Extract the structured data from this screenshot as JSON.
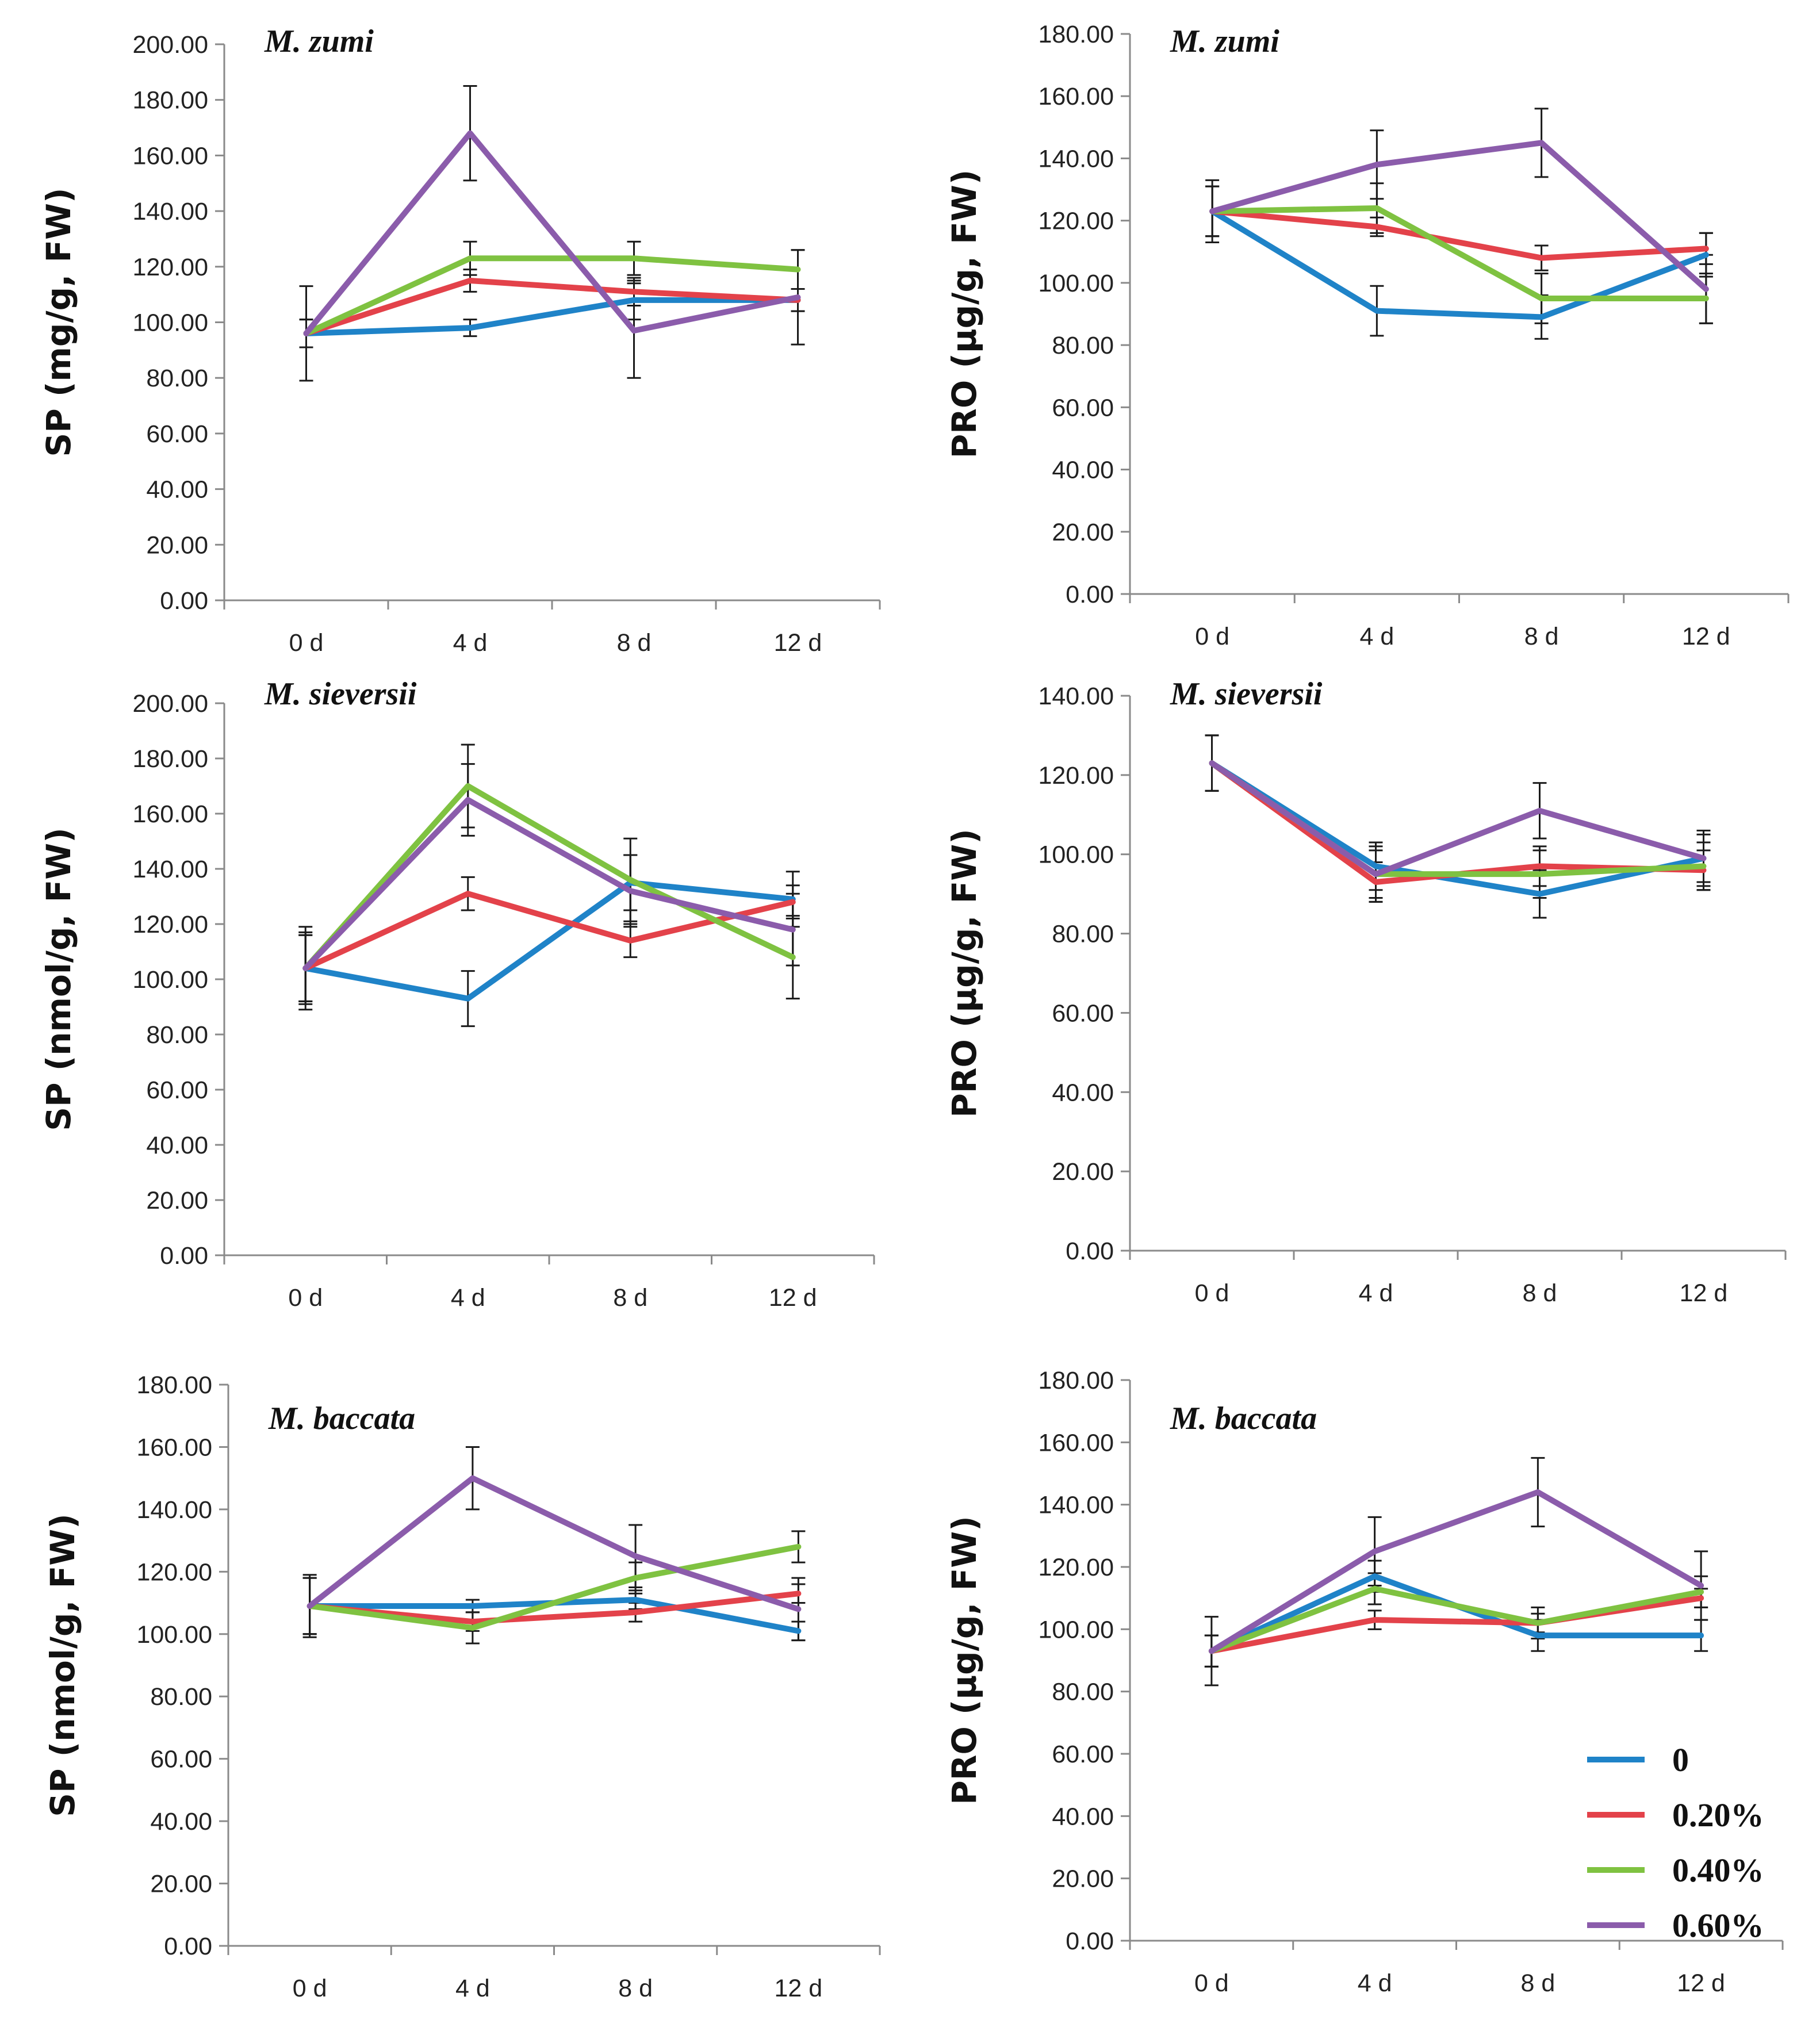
{
  "chart_data": [
    {
      "type": "line",
      "title": "M. zumi",
      "ylabel": "SP (mg/g, FW)",
      "xlabel": "",
      "categories": [
        "0 d",
        "4 d",
        "8 d",
        "12 d"
      ],
      "ylim": [
        0,
        200
      ],
      "ytick_step": 20,
      "ytick_labels": [
        "0.00",
        "20.00",
        "40.00",
        "60.00",
        "80.00",
        "100.00",
        "120.00",
        "140.00",
        "160.00",
        "180.00",
        "200.00"
      ],
      "series": [
        {
          "name": "0",
          "values": [
            96,
            98,
            108,
            108
          ],
          "errors": [
            5,
            3,
            7,
            4
          ]
        },
        {
          "name": "0.20%",
          "values": [
            96,
            115,
            111,
            108
          ],
          "errors": [
            5,
            4,
            5,
            4
          ]
        },
        {
          "name": "0.40%",
          "values": [
            96,
            123,
            123,
            119
          ],
          "errors": [
            5,
            6,
            6,
            7
          ]
        },
        {
          "name": "0.60%",
          "values": [
            96,
            168,
            97,
            109
          ],
          "errors": [
            17,
            17,
            17,
            17
          ]
        }
      ]
    },
    {
      "type": "line",
      "title": "M. zumi",
      "ylabel": "PRO (µg/g, FW)",
      "xlabel": "",
      "categories": [
        "0 d",
        "4 d",
        "8 d",
        "12 d"
      ],
      "ylim": [
        0,
        180
      ],
      "ytick_step": 20,
      "ytick_labels": [
        "0.00",
        "20.00",
        "40.00",
        "60.00",
        "80.00",
        "100.00",
        "120.00",
        "140.00",
        "160.00",
        "180.00"
      ],
      "series": [
        {
          "name": "0",
          "values": [
            123,
            91,
            89,
            109
          ],
          "errors": [
            8,
            8,
            7,
            7
          ]
        },
        {
          "name": "0.20%",
          "values": [
            123,
            118,
            108,
            111
          ],
          "errors": [
            8,
            3,
            4,
            5
          ]
        },
        {
          "name": "0.40%",
          "values": [
            123,
            124,
            95,
            95
          ],
          "errors": [
            8,
            8,
            8,
            8
          ]
        },
        {
          "name": "0.60%",
          "values": [
            123,
            138,
            145,
            98
          ],
          "errors": [
            10,
            11,
            11,
            11
          ]
        }
      ]
    },
    {
      "type": "line",
      "title": "M. sieversii",
      "ylabel": "SP (nmol/g, FW)",
      "xlabel": "",
      "categories": [
        "0 d",
        "4 d",
        "8 d",
        "12 d"
      ],
      "ylim": [
        0,
        200
      ],
      "ytick_step": 20,
      "ytick_labels": [
        "0.00",
        "20.00",
        "40.00",
        "60.00",
        "80.00",
        "100.00",
        "120.00",
        "140.00",
        "160.00",
        "180.00",
        "200.00"
      ],
      "series": [
        {
          "name": "0",
          "values": [
            104,
            93,
            135,
            129
          ],
          "errors": [
            12,
            10,
            10,
            10
          ]
        },
        {
          "name": "0.20%",
          "values": [
            104,
            131,
            114,
            128
          ],
          "errors": [
            12,
            6,
            6,
            6
          ]
        },
        {
          "name": "0.40%",
          "values": [
            104,
            170,
            136,
            108
          ],
          "errors": [
            15,
            15,
            15,
            15
          ]
        },
        {
          "name": "0.60%",
          "values": [
            104,
            165,
            132,
            118
          ],
          "errors": [
            13,
            13,
            13,
            13
          ]
        }
      ]
    },
    {
      "type": "line",
      "title": "M. sieversii",
      "ylabel": "PRO (µg/g, FW)",
      "xlabel": "",
      "categories": [
        "0 d",
        "4 d",
        "8 d",
        "12 d"
      ],
      "ylim": [
        0,
        140
      ],
      "ytick_step": 20,
      "ytick_labels": [
        "0.00",
        "20.00",
        "40.00",
        "60.00",
        "80.00",
        "100.00",
        "120.00",
        "140.00"
      ],
      "series": [
        {
          "name": "0",
          "values": [
            123,
            97,
            90,
            99
          ],
          "errors": [
            7,
            6,
            6,
            6
          ]
        },
        {
          "name": "0.20%",
          "values": [
            123,
            93,
            97,
            96
          ],
          "errors": [
            7,
            5,
            5,
            5
          ]
        },
        {
          "name": "0.40%",
          "values": [
            123,
            95,
            95,
            97
          ],
          "errors": [
            7,
            6,
            6,
            6
          ]
        },
        {
          "name": "0.60%",
          "values": [
            123,
            95,
            111,
            99
          ],
          "errors": [
            7,
            7,
            7,
            7
          ]
        }
      ]
    },
    {
      "type": "line",
      "title": "M. baccata",
      "ylabel": "SP (nmol/g, FW)",
      "xlabel": "",
      "categories": [
        "0 d",
        "4 d",
        "8 d",
        "12 d"
      ],
      "ylim": [
        0,
        180
      ],
      "ytick_step": 20,
      "ytick_labels": [
        "0.00",
        "20.00",
        "40.00",
        "60.00",
        "80.00",
        "100.00",
        "120.00",
        "140.00",
        "160.00",
        "180.00"
      ],
      "series": [
        {
          "name": "0",
          "values": [
            109,
            109,
            111,
            101
          ],
          "errors": [
            9,
            2,
            3,
            3
          ]
        },
        {
          "name": "0.20%",
          "values": [
            109,
            104,
            107,
            113
          ],
          "errors": [
            9,
            3,
            3,
            3
          ]
        },
        {
          "name": "0.40%",
          "values": [
            109,
            102,
            118,
            128
          ],
          "errors": [
            9,
            5,
            5,
            5
          ]
        },
        {
          "name": "0.60%",
          "values": [
            109,
            150,
            125,
            108
          ],
          "errors": [
            10,
            10,
            10,
            10
          ]
        }
      ]
    },
    {
      "type": "line",
      "title": "M. baccata",
      "ylabel": "PRO (µg/g, FW)",
      "xlabel": "",
      "categories": [
        "0 d",
        "4 d",
        "8 d",
        "12 d"
      ],
      "ylim": [
        0,
        180
      ],
      "ytick_step": 20,
      "ytick_labels": [
        "0.00",
        "20.00",
        "40.00",
        "60.00",
        "80.00",
        "100.00",
        "120.00",
        "140.00",
        "160.00",
        "180.00"
      ],
      "series": [
        {
          "name": "0",
          "values": [
            93,
            117,
            98,
            98
          ],
          "errors": [
            5,
            5,
            5,
            5
          ]
        },
        {
          "name": "0.20%",
          "values": [
            93,
            103,
            102,
            110
          ],
          "errors": [
            5,
            3,
            3,
            3
          ]
        },
        {
          "name": "0.40%",
          "values": [
            93,
            113,
            102,
            112
          ],
          "errors": [
            5,
            5,
            5,
            5
          ]
        },
        {
          "name": "0.60%",
          "values": [
            93,
            125,
            144,
            114
          ],
          "errors": [
            11,
            11,
            11,
            11
          ]
        }
      ]
    }
  ],
  "legend": {
    "placement": "bottom-right",
    "entries": [
      {
        "label": "0",
        "color": "#1f83c8"
      },
      {
        "label": "0.20%",
        "color": "#e3424a"
      },
      {
        "label": "0.40%",
        "color": "#7fc241"
      },
      {
        "label": "0.60%",
        "color": "#8b5cab"
      }
    ]
  }
}
